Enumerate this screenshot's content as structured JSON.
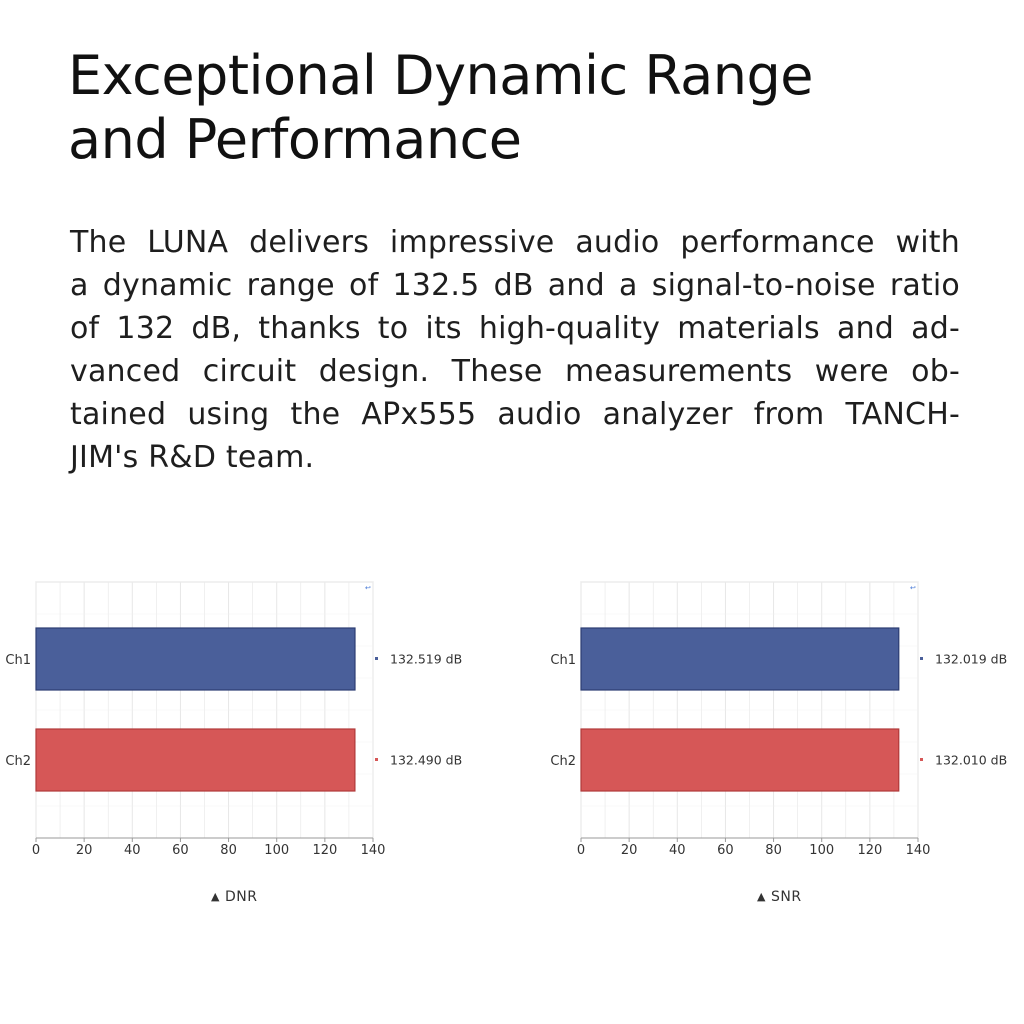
{
  "heading": {
    "line1": "Exceptional Dynamic Range",
    "line2": "and Performance"
  },
  "description": {
    "lines": [
      "The LUNA delivers impressive audio performance with",
      "a dynamic range of 132.5 dB and a signal-to-noise ratio",
      "of 132 dB, thanks to its high-quality materials and ad-",
      "vanced circuit design. These measurements were ob-",
      "tained using the APx555 audio analyzer from TANCH-",
      "JIM's R&D team."
    ]
  },
  "colors": {
    "ch1": "#4a5f9a",
    "ch1_edge": "#2c3d73",
    "ch2": "#d65757",
    "ch2_edge": "#b03a3a",
    "grid": "#e6e6e6",
    "frame": "#d4d4d4"
  },
  "chart_data": [
    {
      "type": "bar",
      "orientation": "horizontal",
      "categories": [
        "Ch1",
        "Ch2"
      ],
      "values": [
        132.519,
        132.49
      ],
      "value_labels": [
        "132.519 dB",
        "132.490 dB"
      ],
      "xlim": [
        0,
        140
      ],
      "xticks": [
        0,
        20,
        40,
        60,
        80,
        100,
        120,
        140
      ],
      "grid": true,
      "caption": "DNR"
    },
    {
      "type": "bar",
      "orientation": "horizontal",
      "categories": [
        "Ch1",
        "Ch2"
      ],
      "values": [
        132.019,
        132.01
      ],
      "value_labels": [
        "132.019 dB",
        "132.010 dB"
      ],
      "xlim": [
        0,
        140
      ],
      "xticks": [
        0,
        20,
        40,
        60,
        80,
        100,
        120,
        140
      ],
      "grid": true,
      "caption": "SNR"
    }
  ],
  "caption_marker": "▲"
}
